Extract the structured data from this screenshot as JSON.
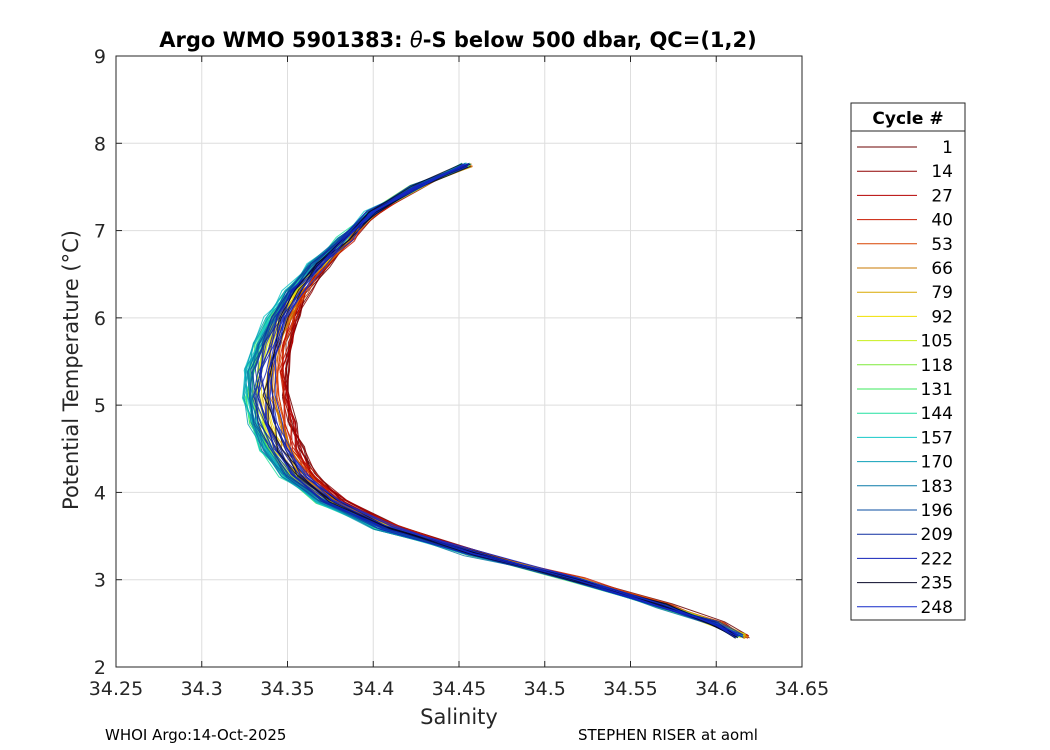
{
  "chart_data": {
    "type": "line",
    "title_prefix": "Argo WMO 5901383: ",
    "title_symbol": "θ",
    "title_suffix": "-S below 500 dbar,  QC=(1,2)",
    "xlabel": "Salinity",
    "ylabel": "Potential Temperature (°C)",
    "xlim": [
      34.25,
      34.65
    ],
    "ylim": [
      2,
      9
    ],
    "xticks": [
      "34.25",
      "34.3",
      "34.35",
      "34.4",
      "34.45",
      "34.5",
      "34.55",
      "34.6",
      "34.65"
    ],
    "yticks": [
      "2",
      "3",
      "4",
      "5",
      "6",
      "7",
      "8",
      "9"
    ],
    "grid": true,
    "legend_title": "Cycle #",
    "legend_position": "right-outside",
    "base_profile": {
      "temperature": [
        7.75,
        7.5,
        7.2,
        6.9,
        6.6,
        6.3,
        6.0,
        5.7,
        5.4,
        5.1,
        4.8,
        4.5,
        4.2,
        3.9,
        3.6,
        3.3,
        3.0,
        2.7,
        2.5,
        2.35
      ],
      "salinity": [
        34.455,
        34.425,
        34.4,
        34.385,
        34.37,
        34.358,
        34.35,
        34.345,
        34.342,
        34.342,
        34.345,
        34.35,
        34.36,
        34.378,
        34.41,
        34.46,
        34.52,
        34.57,
        34.6,
        34.615
      ]
    },
    "series": [
      {
        "name": "1",
        "color": "#6b0000"
      },
      {
        "name": "14",
        "color": "#8f0000"
      },
      {
        "name": "27",
        "color": "#b50000"
      },
      {
        "name": "40",
        "color": "#c81a00"
      },
      {
        "name": "53",
        "color": "#d84400"
      },
      {
        "name": "66",
        "color": "#c97a00"
      },
      {
        "name": "79",
        "color": "#d9a800"
      },
      {
        "name": "92",
        "color": "#f0e000"
      },
      {
        "name": "105",
        "color": "#c8ef1c"
      },
      {
        "name": "118",
        "color": "#7eea3a"
      },
      {
        "name": "131",
        "color": "#3ee85e"
      },
      {
        "name": "144",
        "color": "#22e0a0"
      },
      {
        "name": "157",
        "color": "#16c8c8"
      },
      {
        "name": "170",
        "color": "#0ea0b8"
      },
      {
        "name": "183",
        "color": "#0a7aa8"
      },
      {
        "name": "196",
        "color": "#0a4ea0"
      },
      {
        "name": "209",
        "color": "#0e2ea0"
      },
      {
        "name": "222",
        "color": "#1020b8"
      },
      {
        "name": "235",
        "color": "#080828"
      },
      {
        "name": "248",
        "color": "#1428c8"
      }
    ]
  },
  "footer": {
    "left": "WHOI Argo:14-Oct-2025",
    "right": "STEPHEN RISER at aoml"
  }
}
